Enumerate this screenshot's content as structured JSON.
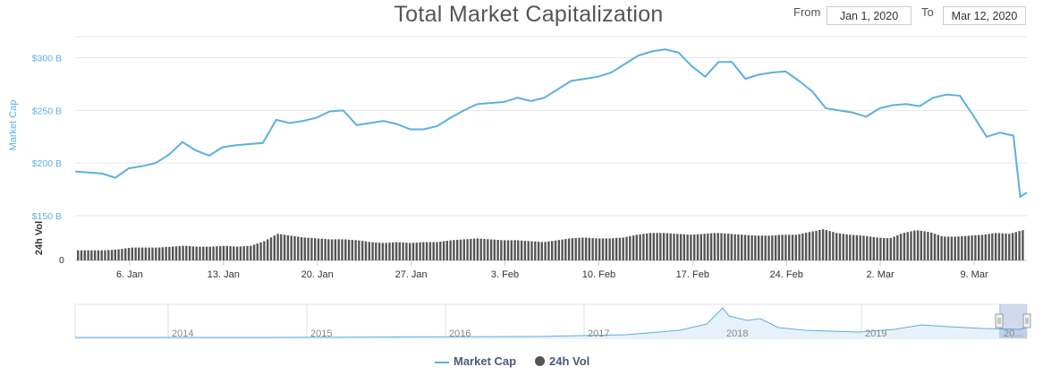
{
  "header": {
    "title": "Total Market Capitalization",
    "from_label": "From",
    "from_value": "Jan 1, 2020",
    "to_label": "To",
    "to_value": "Mar 12, 2020"
  },
  "chart_data": [
    {
      "type": "line",
      "title": "Total Market Capitalization",
      "ylabel": "Market Cap",
      "xlabel": "",
      "ylim": [
        150,
        320
      ],
      "yticks": [
        "$150 B",
        "$200 B",
        "$250 B",
        "$300 B"
      ],
      "xticks": [
        "6. Jan",
        "13. Jan",
        "20. Jan",
        "27. Jan",
        "3. Feb",
        "10. Feb",
        "17. Feb",
        "24. Feb",
        "2. Mar",
        "9. Mar"
      ],
      "grid": true,
      "series": [
        {
          "name": "Market Cap",
          "color": "#5bb0e0",
          "x": [
            0,
            1,
            2,
            3,
            4,
            5,
            6,
            7,
            8,
            9,
            10,
            11,
            12,
            13,
            14,
            15,
            16,
            17,
            18,
            19,
            20,
            21,
            22,
            23,
            24,
            25,
            26,
            27,
            28,
            29,
            30,
            31,
            32,
            33,
            34,
            35,
            36,
            37,
            38,
            39,
            40,
            41,
            42,
            43,
            44,
            45,
            46,
            47,
            48,
            49,
            50,
            51,
            52,
            53,
            54,
            55,
            56,
            57,
            58,
            59,
            60,
            61,
            62,
            63,
            64,
            65,
            66,
            67,
            68,
            69,
            70,
            70.5,
            71
          ],
          "values": [
            192,
            191,
            190,
            186,
            195,
            197,
            200,
            208,
            220,
            212,
            207,
            215,
            217,
            218,
            219,
            241,
            238,
            240,
            243,
            249,
            250,
            236,
            238,
            240,
            237,
            232,
            232,
            235,
            243,
            250,
            256,
            257,
            258,
            262,
            259,
            262,
            270,
            278,
            280,
            282,
            286,
            294,
            302,
            306,
            308,
            305,
            292,
            282,
            296,
            296,
            280,
            284,
            286,
            287,
            278,
            268,
            252,
            250,
            248,
            244,
            252,
            255,
            256,
            254,
            262,
            265,
            264,
            245,
            225,
            229,
            226,
            168,
            172
          ]
        },
        {
          "name": "24h Vol",
          "color": "#555555",
          "x": [
            0,
            1,
            2,
            3,
            4,
            5,
            6,
            7,
            8,
            9,
            10,
            11,
            12,
            13,
            14,
            15,
            16,
            17,
            18,
            19,
            20,
            21,
            22,
            23,
            24,
            25,
            26,
            27,
            28,
            29,
            30,
            31,
            32,
            33,
            34,
            35,
            36,
            37,
            38,
            39,
            40,
            41,
            42,
            43,
            44,
            45,
            46,
            47,
            48,
            49,
            50,
            51,
            52,
            53,
            54,
            55,
            56,
            57,
            58,
            59,
            60,
            61,
            62,
            63,
            64,
            65,
            66,
            67,
            68,
            69,
            70,
            71
          ],
          "values": [
            11,
            11,
            11,
            12,
            14,
            14,
            14,
            15,
            16,
            15,
            15,
            16,
            15,
            16,
            21,
            29,
            27,
            25,
            24,
            23,
            23,
            22,
            20,
            19,
            20,
            19,
            20,
            20,
            22,
            23,
            24,
            23,
            22,
            22,
            21,
            20,
            22,
            24,
            25,
            24,
            24,
            25,
            28,
            30,
            30,
            29,
            28,
            29,
            30,
            29,
            28,
            27,
            27,
            28,
            28,
            31,
            34,
            30,
            28,
            27,
            25,
            24,
            30,
            33,
            31,
            26,
            26,
            27,
            28,
            30,
            29,
            33
          ]
        }
      ],
      "navigator": {
        "xticks": [
          "2014",
          "2015",
          "2016",
          "2017",
          "2018",
          "2019",
          "20..."
        ]
      }
    }
  ],
  "legend": {
    "market_cap_label": "Market Cap",
    "vol_label": "24h Vol",
    "market_cap_color": "#5bb0e0",
    "vol_color": "#555555"
  }
}
